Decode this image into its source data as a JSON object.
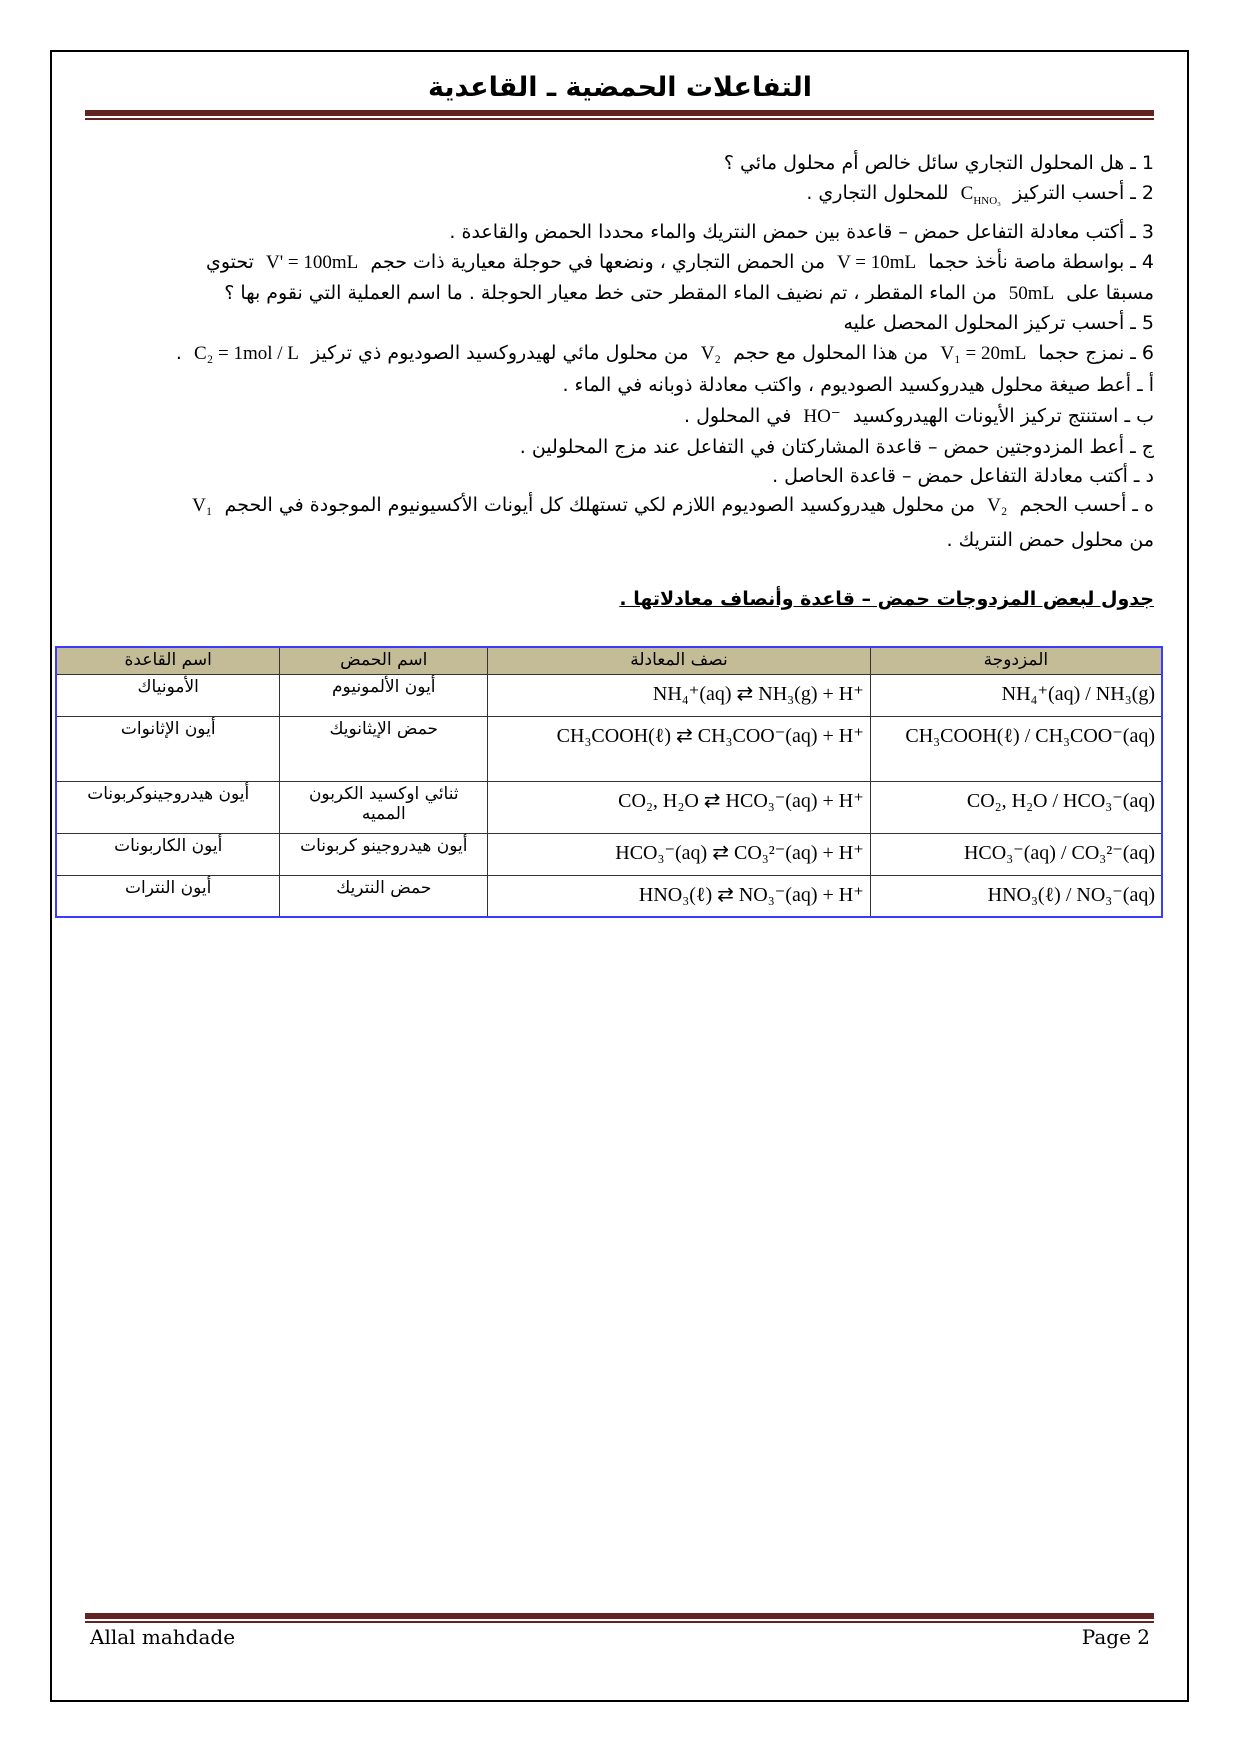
{
  "title": "التفاعلات الحمضية ـ القاعدية",
  "questions": {
    "q1": "1 ـ هل المحلول التجاري سائل خالص أم محلول مائي ؟",
    "q2_a": "2 ـ أحسب التركيز",
    "q2_sym": "C",
    "q2_sub": "HNO₃",
    "q2_b": "للمحلول التجاري .",
    "q3": "3 ـ أكتب معادلة التفاعل حمض – قاعدة بين حمض النتريك والماء محددا الحمض والقاعدة .",
    "q4_a": "4 ـ بواسطة ماصة نأخذ حجما",
    "q4_m1": "V = 10mL",
    "q4_b": "من الحمض التجاري ، ونضعها في حوجلة معيارية ذات حجم",
    "q4_m2": "V' = 100mL",
    "q4_c": "تحتوي",
    "q4_d": "مسبقا على",
    "q4_m3": "50mL",
    "q4_e": "من الماء المقطر ، تم نضيف الماء المقطر حتى خط معيار الحوجلة . ما اسم العملية التي نقوم بها ؟",
    "q5": "5 ـ أحسب تركيز المحلول المحصل عليه",
    "q6_a": "6 ـ نمزج حجما",
    "q6_m1": "V₁ = 20mL",
    "q6_b": "من هذا المحلول مع حجم",
    "q6_m2": "V₂",
    "q6_c": "من محلول مائي لهيدروكسيد الصوديوم ذي تركيز",
    "q6_m3": "C₂ = 1mol / L",
    "q6_d": ".",
    "qa": "أ ـ أعط صيغة محلول هيدروكسيد الصوديوم ، واكتب معادلة ذوبانه في الماء .",
    "qb_a": "ب ـ استنتج تركيز الأيونات الهيدروكسيد",
    "qb_m": "HO⁻",
    "qb_b": "في المحلول .",
    "qc": "ج ـ أعط المزدوجتين حمض – قاعدة المشاركتان في التفاعل عند مزج المحلولين .",
    "qd": "د ـ أكتب معادلة التفاعل حمض – قاعدة الحاصل .",
    "qe_a": "ه ـ أحسب الحجم",
    "qe_m1": "V₂",
    "qe_b": "من محلول هيدروكسيد الصوديوم اللازم لكي تستهلك كل أيونات الأكسيونيوم الموجودة في الحجم",
    "qe_m2": "V₁",
    "qe_c": "من محلول حمض النتريك ."
  },
  "table_caption": "جدول لبعض المزدوجات حمض – قاعدة وأنصاف معادلاتها .",
  "table": {
    "headers": [
      "المزدوجة",
      "نصف المعادلة",
      "اسم الحمض",
      "اسم القاعدة"
    ],
    "rows": [
      [
        "NH₄⁺(aq) / NH₃(g)",
        "NH₄⁺(aq) ⇄ NH₃(g) + H⁺",
        "أيون الألمونيوم",
        "الأمونياك"
      ],
      [
        "CH₃COOH(ℓ) / CH₃COO⁻(aq)",
        "CH₃COOH(ℓ) ⇄ CH₃COO⁻(aq) + H⁺",
        "حمض الإيثانويك",
        "أيون الإثانوات"
      ],
      [
        "CO₂, H₂O / HCO₃⁻(aq)",
        "CO₂, H₂O ⇄ HCO₃⁻(aq) + H⁺",
        "ثنائي اوكسيد الكربون المميه",
        "أيون هيدروجينوكربونات"
      ],
      [
        "HCO₃⁻(aq) / CO₃²⁻(aq)",
        "HCO₃⁻(aq) ⇄ CO₃²⁻(aq) + H⁺",
        "أيون هيدروجينو كربونات",
        "أيون الكاربونات"
      ],
      [
        "HNO₃(ℓ) / NO₃⁻(aq)",
        "HNO₃(ℓ) ⇄ NO₃⁻(aq) + H⁺",
        "حمض النتريك",
        "أيون النترات"
      ]
    ]
  },
  "footer": {
    "author": "Allal mahdade",
    "page": "Page 2"
  },
  "colors": {
    "rule": "#622423",
    "table_header": "#c4bc96",
    "table_border": "#3b3bff"
  }
}
